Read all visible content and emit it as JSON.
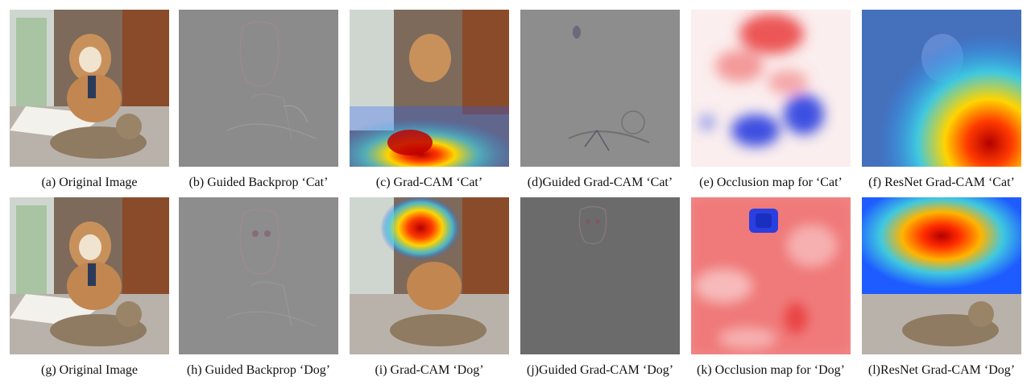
{
  "figure": {
    "rows": [
      {
        "panels": [
          {
            "type": "original",
            "caption": "(a) Original Image"
          },
          {
            "type": "guided-backprop",
            "caption": "(b) Guided Backprop ‘Cat’"
          },
          {
            "type": "gradcam",
            "caption": "(c) Grad-CAM ‘Cat’"
          },
          {
            "type": "guided-gradcam",
            "caption": "(d)Guided Grad-CAM ‘Cat’"
          },
          {
            "type": "occlusion",
            "caption": "(e) Occlusion map for ‘Cat’"
          },
          {
            "type": "resnet-gradcam",
            "caption": "(f) ResNet Grad-CAM ‘Cat’"
          }
        ]
      },
      {
        "panels": [
          {
            "type": "original",
            "caption": "(g) Original Image"
          },
          {
            "type": "guided-backprop",
            "caption": "(h) Guided Backprop ‘Dog’"
          },
          {
            "type": "gradcam",
            "caption": "(i) Grad-CAM ‘Dog’"
          },
          {
            "type": "guided-gradcam",
            "caption": "(j)Guided Grad-CAM ‘Dog’"
          },
          {
            "type": "occlusion",
            "caption": "(k) Occlusion map for ‘Dog’"
          },
          {
            "type": "resnet-gradcam",
            "caption": "(l)ResNet Grad-CAM ‘Dog’"
          }
        ]
      }
    ]
  },
  "colors": {
    "heat_hot": "#b40000",
    "heat_warm": "#ffd400",
    "heat_cool": "#1e5cff",
    "occlusion_positive": "#e83030",
    "occlusion_negative": "#2a3fe0"
  }
}
